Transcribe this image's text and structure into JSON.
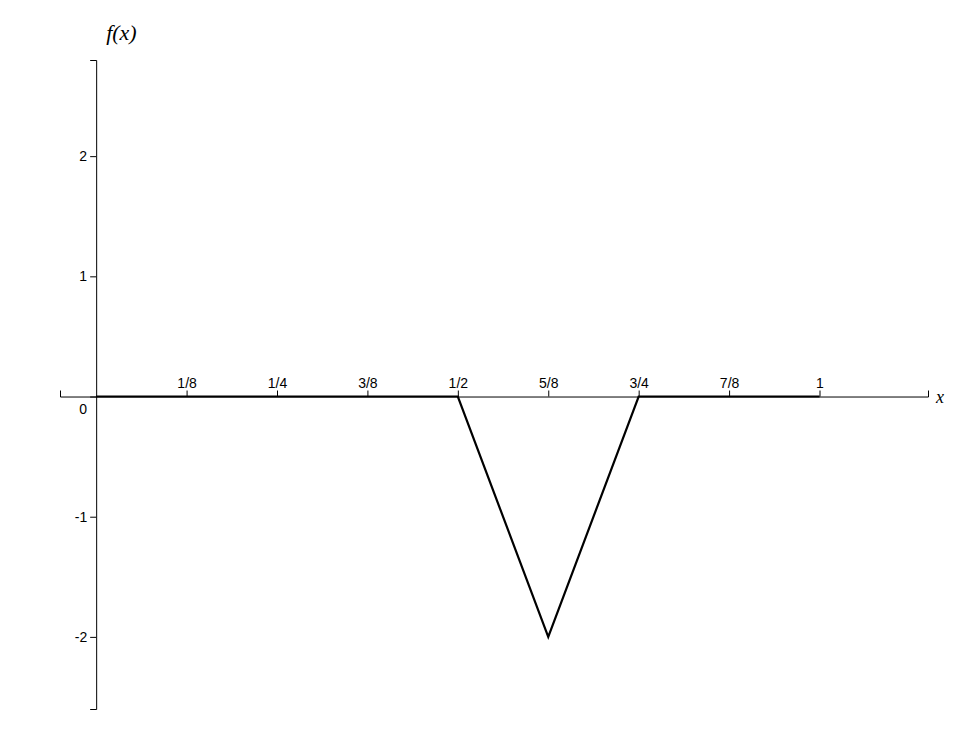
{
  "chart_data": {
    "type": "line",
    "title": "f(x)",
    "xlabel": "x",
    "x": [
      0,
      0.5,
      0.625,
      0.75,
      1.0
    ],
    "values": [
      0,
      0,
      -2,
      0,
      0
    ],
    "color": "#000000",
    "xlim": [
      -0.05,
      1.15
    ],
    "ylim": [
      -2.6,
      2.8
    ],
    "xticks": [
      {
        "value": 0.125,
        "label": "1/8"
      },
      {
        "value": 0.25,
        "label": "1/4"
      },
      {
        "value": 0.375,
        "label": "3/8"
      },
      {
        "value": 0.5,
        "label": "1/2"
      },
      {
        "value": 0.625,
        "label": "5/8"
      },
      {
        "value": 0.75,
        "label": "3/4"
      },
      {
        "value": 0.875,
        "label": "7/8"
      },
      1
    ],
    "yticks": [
      -2,
      -1,
      0,
      1,
      2
    ]
  }
}
